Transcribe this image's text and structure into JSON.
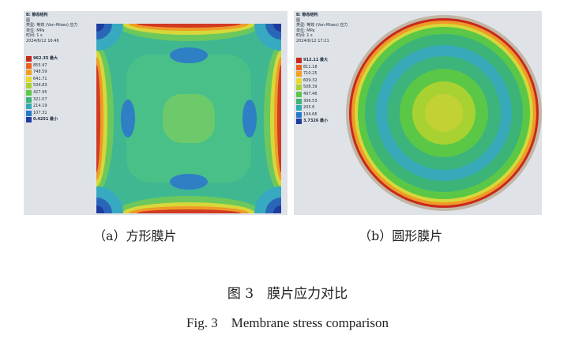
{
  "panel_a": {
    "header": [
      "B: 静态结构",
      "图",
      "类型: 等效 (Von-Mises) 应力",
      "单位: MPa",
      "时间: 1 s",
      "2024/6/12 16:46"
    ],
    "legend": [
      {
        "label": "962.35 最大",
        "color": "#c8281e"
      },
      {
        "label": "855.47",
        "color": "#e8641e"
      },
      {
        "label": "748.59",
        "color": "#f0a01e"
      },
      {
        "label": "641.71",
        "color": "#e6dc28"
      },
      {
        "label": "534.83",
        "color": "#a8d232"
      },
      {
        "label": "427.95",
        "color": "#5ac846"
      },
      {
        "label": "321.07",
        "color": "#3cb478"
      },
      {
        "label": "214.19",
        "color": "#32aab4"
      },
      {
        "label": "107.31",
        "color": "#2878c8"
      },
      {
        "label": "0.4251 最小",
        "color": "#1e3ca0"
      }
    ],
    "caption": "（a）方形膜片"
  },
  "panel_b": {
    "header": [
      "B: 静态结构",
      "图",
      "类型: 等效 (Von-Mises) 应力",
      "单位: MPa",
      "时间: 1 s",
      "2024/6/12 17:21"
    ],
    "legend": [
      {
        "label": "912.11 最大",
        "color": "#c8281e"
      },
      {
        "label": "811.18",
        "color": "#e8641e"
      },
      {
        "label": "710.25",
        "color": "#f0a01e"
      },
      {
        "label": "609.32",
        "color": "#e6dc28"
      },
      {
        "label": "508.39",
        "color": "#a8d232"
      },
      {
        "label": "407.46",
        "color": "#5ac846"
      },
      {
        "label": "306.53",
        "color": "#3cb478"
      },
      {
        "label": "205.6",
        "color": "#32aab4"
      },
      {
        "label": "104.66",
        "color": "#2878c8"
      },
      {
        "label": "3.7326 最小",
        "color": "#1e3ca0"
      }
    ],
    "caption": "（b）圆形膜片"
  },
  "figure_caption_cn": "图 3　膜片应力对比",
  "figure_caption_en": "Fig. 3　Membrane stress comparison"
}
